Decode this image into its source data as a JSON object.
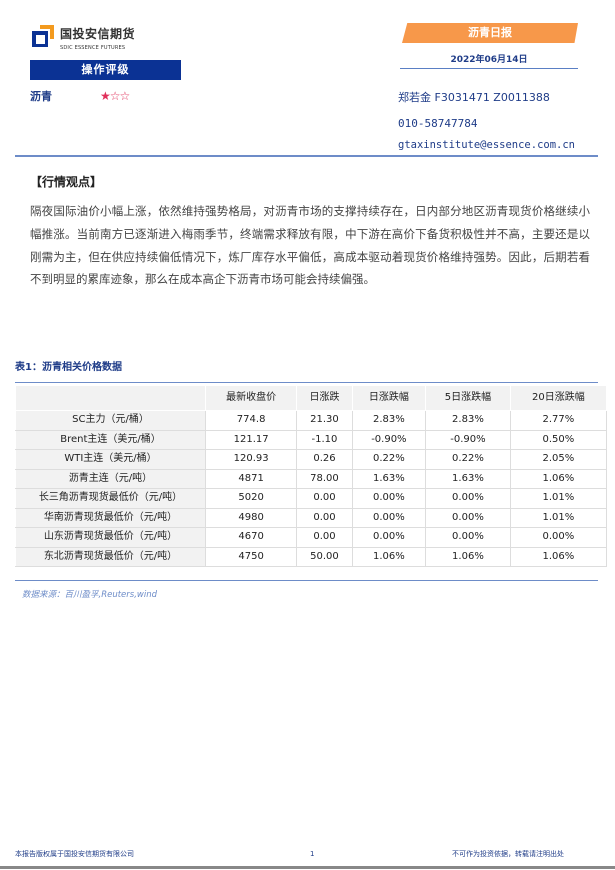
{
  "header": {
    "logo_cn": "国投安信期货",
    "logo_en": "SDIC ESSENCE FUTURES",
    "rating_label": "操作评级",
    "product": "沥青",
    "rating_stars": 1,
    "rating_max": 3,
    "report_type": "沥青日报",
    "date": "2022年06月14日",
    "author": "郑若金 F3031471 Z0011388",
    "phone": "010-58747784",
    "email": "gtaxinstitute@essence.com.cn",
    "colors": {
      "brand_blue": "#0b3294",
      "accent_orange": "#f7984a",
      "star": "#e0305a"
    }
  },
  "view": {
    "title": "【行情观点】",
    "body": "隔夜国际油价小幅上涨，依然维持强势格局，对沥青市场的支撑持续存在，日内部分地区沥青现货价格继续小幅推涨。当前南方已逐渐进入梅雨季节，终端需求释放有限，中下游在高价下备货积极性并不高，主要还是以刚需为主，但在供应持续偏低情况下，炼厂库存水平偏低，高成本驱动着现货价格维持强势。因此，后期若看不到明显的累库迹象，那么在成本高企下沥青市场可能会持续偏强。"
  },
  "table": {
    "title": "表1：沥青相关价格数据",
    "headers": [
      "",
      "最新收盘价",
      "日涨跌",
      "日涨跌幅",
      "5日涨跌幅",
      "20日涨跌幅"
    ],
    "rows": [
      [
        "SC主力（元/桶）",
        "774.8",
        "21.30",
        "2.83%",
        "2.83%",
        "2.77%"
      ],
      [
        "Brent主连（美元/桶）",
        "121.17",
        "-1.10",
        "-0.90%",
        "-0.90%",
        "0.50%"
      ],
      [
        "WTI主连（美元/桶）",
        "120.93",
        "0.26",
        "0.22%",
        "0.22%",
        "2.05%"
      ],
      [
        "沥青主连（元/吨）",
        "4871",
        "78.00",
        "1.63%",
        "1.63%",
        "1.06%"
      ],
      [
        "长三角沥青现货最低价（元/吨）",
        "5020",
        "0.00",
        "0.00%",
        "0.00%",
        "1.01%"
      ],
      [
        "华南沥青现货最低价（元/吨）",
        "4980",
        "0.00",
        "0.00%",
        "0.00%",
        "1.01%"
      ],
      [
        "山东沥青现货最低价（元/吨）",
        "4670",
        "0.00",
        "0.00%",
        "0.00%",
        "0.00%"
      ],
      [
        "东北沥青现货最低价（元/吨）",
        "4750",
        "50.00",
        "1.06%",
        "1.06%",
        "1.06%"
      ]
    ],
    "source": "数据来源：百川盈孚,Reuters,wind"
  },
  "footer": {
    "copyright": "本报告版权属于国投安信期货有限公司",
    "page": "1",
    "disclaimer": "不可作为投资依据，转载请注明出处"
  }
}
